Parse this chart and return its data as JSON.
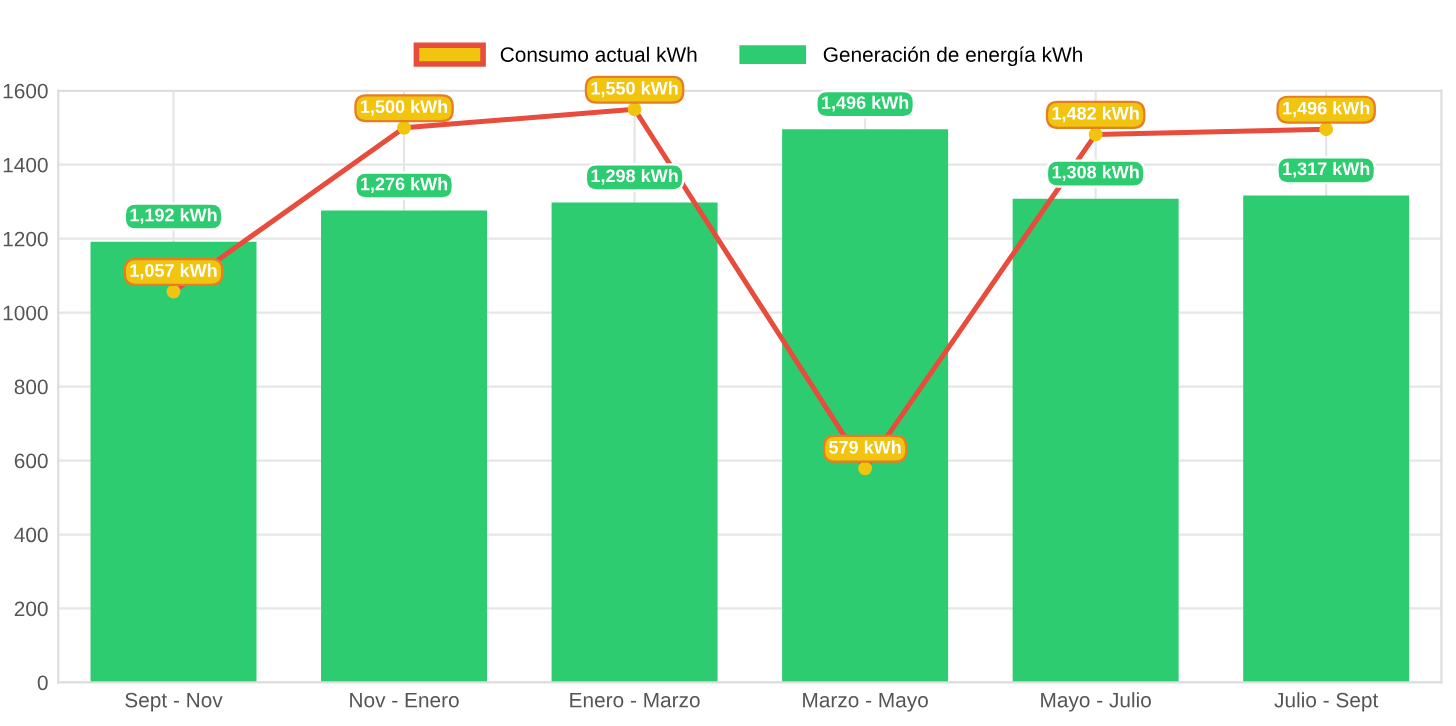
{
  "chart_data": {
    "type": "bar",
    "categories": [
      "Sept - Nov",
      "Nov - Enero",
      "Enero - Marzo",
      "Marzo - Mayo",
      "Mayo - Julio",
      "Julio - Sept"
    ],
    "series": [
      {
        "name": "Consumo actual kWh",
        "type": "line",
        "color": "#e74c3c",
        "values": [
          1057,
          1500,
          1550,
          579,
          1482,
          1496
        ],
        "value_labels": [
          "1,057 kWh",
          "1,500 kWh",
          "1,550 kWh",
          "579 kWh",
          "1,482 kWh",
          "1,496 kWh"
        ]
      },
      {
        "name": "Generación de energía kWh",
        "color": "#2ecc71",
        "values": [
          1192,
          1276,
          1298,
          1496,
          1308,
          1317
        ],
        "value_labels": [
          "1,192 kWh",
          "1,276 kWh",
          "1,298 kWh",
          "1,496 kWh",
          "1,308 kWh",
          "1,317 kWh"
        ]
      }
    ],
    "ylim": [
      0,
      1600
    ],
    "yticks": [
      0,
      200,
      400,
      600,
      800,
      1000,
      1200,
      1400,
      1600
    ],
    "grid": true,
    "legend": "top",
    "marker": "circle",
    "line_style": "solid"
  }
}
